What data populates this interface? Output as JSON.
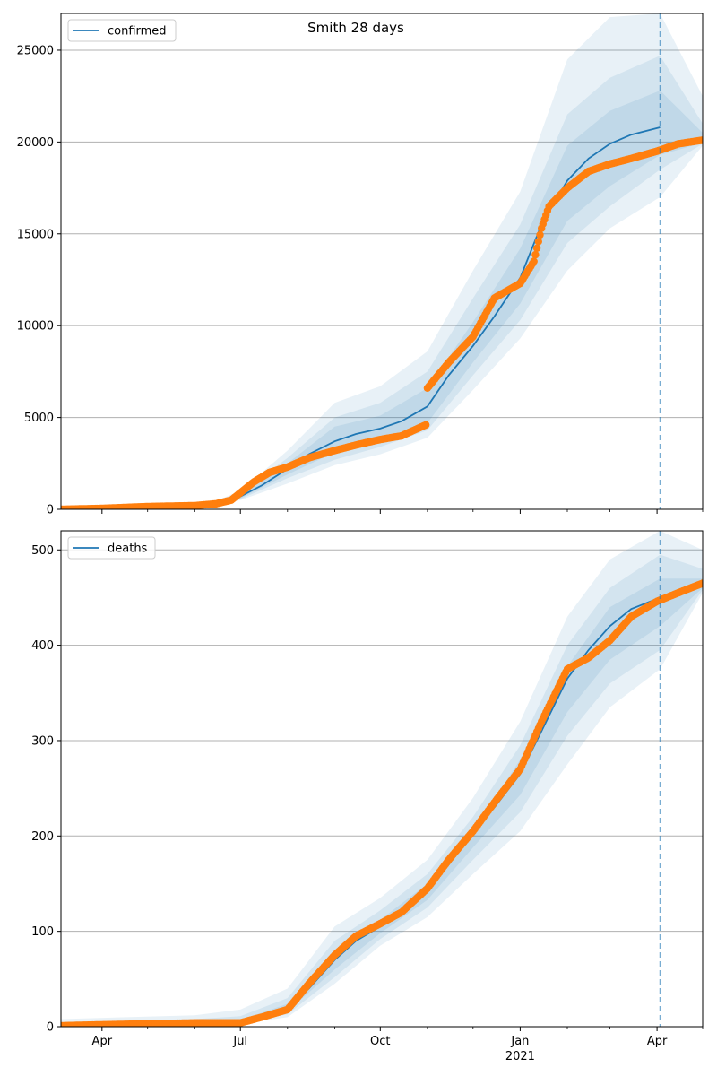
{
  "figure": {
    "title": "Smith 28 days"
  },
  "colors": {
    "forecast_line": "#1f77b4",
    "observed_points": "#ff7f0e",
    "band": "#1f77b4",
    "grid": "#b0b0b0",
    "vline": "#1f77b4"
  },
  "x_axis": {
    "ticks": [
      {
        "date": "2020-04-01",
        "label": "Apr"
      },
      {
        "date": "2020-07-01",
        "label": "Jul"
      },
      {
        "date": "2020-10-01",
        "label": "Oct"
      },
      {
        "date": "2021-01-01",
        "label": "Jan",
        "sublabel": "2021"
      },
      {
        "date": "2021-04-01",
        "label": "Apr"
      }
    ],
    "minor_ticks": [
      "2020-05-01",
      "2020-06-01",
      "2020-08-01",
      "2020-09-01",
      "2020-11-01",
      "2020-12-01",
      "2021-02-01",
      "2021-03-01",
      "2021-05-01"
    ]
  },
  "chart_data": [
    {
      "type": "line",
      "legend": "confirmed",
      "legend_position": "upper left",
      "xlim": [
        "2020-03-05",
        "2021-05-01"
      ],
      "ylim": [
        0,
        27000
      ],
      "yticks": [
        0,
        5000,
        10000,
        15000,
        20000,
        25000
      ],
      "grid": "y",
      "forecast_start": "2021-04-03",
      "forecast_line": {
        "dates": [
          "2020-06-10",
          "2020-07-01",
          "2020-07-15",
          "2020-08-01",
          "2020-08-15",
          "2020-09-01",
          "2020-09-15",
          "2020-10-01",
          "2020-10-15",
          "2020-11-01",
          "2020-11-15",
          "2020-12-01",
          "2020-12-15",
          "2021-01-01",
          "2021-01-15",
          "2021-02-01",
          "2021-02-15",
          "2021-03-01",
          "2021-03-15",
          "2021-04-03"
        ],
        "values": [
          200,
          700,
          1300,
          2200,
          3000,
          3700,
          4100,
          4400,
          4800,
          5600,
          7300,
          8900,
          10500,
          12600,
          15500,
          17900,
          19100,
          19900,
          20400,
          20800
        ]
      },
      "bands": [
        {
          "dates": [
            "2020-06-10",
            "2020-07-01",
            "2020-08-01",
            "2020-09-01",
            "2020-10-01",
            "2020-11-01",
            "2020-12-01",
            "2021-01-01",
            "2021-02-01",
            "2021-03-01",
            "2021-04-03",
            "2021-05-01"
          ],
          "lower": [
            150,
            500,
            1400,
            2400,
            3000,
            3900,
            6500,
            9300,
            13000,
            15300,
            17000,
            19800
          ],
          "upper": [
            300,
            1000,
            3200,
            5800,
            6700,
            8600,
            13000,
            17300,
            24500,
            26800,
            27000,
            22500
          ]
        },
        {
          "dates": [
            "2020-06-10",
            "2020-07-01",
            "2020-08-01",
            "2020-09-01",
            "2020-10-01",
            "2020-11-01",
            "2020-12-01",
            "2021-01-01",
            "2021-02-01",
            "2021-03-01",
            "2021-04-03",
            "2021-05-01"
          ],
          "lower": [
            160,
            550,
            1700,
            2700,
            3400,
            4300,
            7300,
            10300,
            14500,
            16500,
            18500,
            19900
          ],
          "upper": [
            270,
            900,
            2800,
            5000,
            5800,
            7500,
            11500,
            15500,
            21500,
            23500,
            24700,
            21000
          ]
        },
        {
          "dates": [
            "2020-06-10",
            "2020-07-01",
            "2020-08-01",
            "2020-09-01",
            "2020-10-01",
            "2020-11-01",
            "2020-12-01",
            "2021-01-01",
            "2021-02-01",
            "2021-03-01",
            "2021-04-03",
            "2021-05-01"
          ],
          "lower": [
            175,
            600,
            1900,
            3100,
            3800,
            4700,
            8000,
            11200,
            15700,
            17600,
            19300,
            19950
          ],
          "upper": [
            240,
            820,
            2500,
            4500,
            5100,
            6600,
            10200,
            14200,
            19800,
            21700,
            22800,
            20500
          ]
        }
      ],
      "observed": {
        "dates": [
          "2020-03-05",
          "2020-04-01",
          "2020-05-01",
          "2020-06-01",
          "2020-06-15",
          "2020-06-25",
          "2020-07-01",
          "2020-07-10",
          "2020-07-20",
          "2020-08-01",
          "2020-08-15",
          "2020-09-01",
          "2020-09-15",
          "2020-10-01",
          "2020-10-15",
          "2020-10-31",
          "2020-11-01",
          "2020-11-15",
          "2020-12-01",
          "2020-12-15",
          "2021-01-01",
          "2021-01-10",
          "2021-01-15",
          "2021-01-20",
          "2021-02-01",
          "2021-02-15",
          "2021-03-01",
          "2021-03-15",
          "2021-04-01",
          "2021-04-15",
          "2021-05-01"
        ],
        "values": [
          0,
          50,
          150,
          200,
          300,
          500,
          900,
          1500,
          2000,
          2300,
          2800,
          3200,
          3500,
          3800,
          4000,
          4600,
          6600,
          8000,
          9400,
          11500,
          12300,
          13500,
          15300,
          16500,
          17500,
          18400,
          18800,
          19100,
          19500,
          19900,
          20100
        ]
      }
    },
    {
      "type": "line",
      "legend": "deaths",
      "legend_position": "upper left",
      "xlim": [
        "2020-03-05",
        "2021-05-01"
      ],
      "ylim": [
        0,
        520
      ],
      "yticks": [
        0,
        100,
        200,
        300,
        400,
        500
      ],
      "grid": "y",
      "forecast_start": "2021-04-03",
      "forecast_line": {
        "dates": [
          "2020-03-05",
          "2020-04-01",
          "2020-05-01",
          "2020-06-01",
          "2020-07-01",
          "2020-07-15",
          "2020-08-01",
          "2020-08-15",
          "2020-09-01",
          "2020-09-15",
          "2020-10-01",
          "2020-10-15",
          "2020-11-01",
          "2020-11-15",
          "2020-12-01",
          "2020-12-15",
          "2021-01-01",
          "2021-01-15",
          "2021-02-01",
          "2021-02-15",
          "2021-03-01",
          "2021-03-15",
          "2021-04-03"
        ],
        "values": [
          2,
          3,
          4,
          5,
          5,
          9,
          20,
          40,
          70,
          90,
          105,
          120,
          145,
          170,
          205,
          230,
          265,
          310,
          365,
          395,
          420,
          438,
          450
        ]
      },
      "bands": [
        {
          "dates": [
            "2020-03-05",
            "2020-06-01",
            "2020-07-01",
            "2020-08-01",
            "2020-09-01",
            "2020-10-01",
            "2020-11-01",
            "2020-12-01",
            "2021-01-01",
            "2021-02-01",
            "2021-03-01",
            "2021-04-03",
            "2021-05-01"
          ],
          "lower": [
            0,
            2,
            3,
            10,
            45,
            85,
            115,
            160,
            205,
            275,
            335,
            375,
            455
          ],
          "upper": [
            8,
            12,
            18,
            40,
            105,
            135,
            175,
            240,
            320,
            430,
            490,
            520,
            500
          ]
        },
        {
          "dates": [
            "2020-03-05",
            "2020-06-01",
            "2020-07-01",
            "2020-08-01",
            "2020-09-01",
            "2020-10-01",
            "2020-11-01",
            "2020-12-01",
            "2021-01-01",
            "2021-02-01",
            "2021-03-01",
            "2021-04-03",
            "2021-05-01"
          ],
          "lower": [
            1,
            3,
            4,
            13,
            52,
            92,
            125,
            175,
            225,
            305,
            360,
            395,
            458
          ],
          "upper": [
            5,
            8,
            11,
            30,
            90,
            122,
            160,
            220,
            295,
            400,
            460,
            495,
            480
          ]
        },
        {
          "dates": [
            "2020-03-05",
            "2020-06-01",
            "2020-07-01",
            "2020-08-01",
            "2020-09-01",
            "2020-10-01",
            "2020-11-01",
            "2020-12-01",
            "2021-01-01",
            "2021-02-01",
            "2021-03-01",
            "2021-04-03",
            "2021-05-01"
          ],
          "lower": [
            1,
            4,
            4,
            16,
            60,
            98,
            133,
            188,
            243,
            330,
            385,
            420,
            460
          ],
          "upper": [
            3,
            6,
            7,
            24,
            80,
            112,
            150,
            205,
            280,
            378,
            440,
            470,
            470
          ]
        }
      ],
      "observed": {
        "dates": [
          "2020-03-05",
          "2020-04-01",
          "2020-05-01",
          "2020-06-01",
          "2020-07-01",
          "2020-07-15",
          "2020-08-01",
          "2020-08-15",
          "2020-09-01",
          "2020-09-15",
          "2020-10-01",
          "2020-10-15",
          "2020-11-01",
          "2020-11-15",
          "2020-12-01",
          "2020-12-15",
          "2021-01-01",
          "2021-01-15",
          "2021-02-01",
          "2021-02-15",
          "2021-03-01",
          "2021-03-15",
          "2021-04-01",
          "2021-04-15",
          "2021-05-01"
        ],
        "values": [
          1,
          2,
          3,
          4,
          4,
          10,
          18,
          45,
          75,
          95,
          108,
          120,
          145,
          175,
          205,
          235,
          270,
          320,
          375,
          387,
          405,
          430,
          446,
          455,
          465
        ]
      }
    }
  ]
}
